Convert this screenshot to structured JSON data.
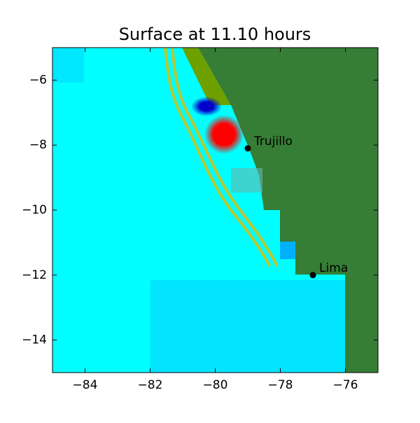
{
  "chart_data": {
    "type": "map",
    "title": "Surface at 11.10 hours",
    "xlim": [
      -85,
      -75
    ],
    "ylim": [
      -15,
      -5
    ],
    "xticks": [
      {
        "value": -84,
        "label": "−84"
      },
      {
        "value": -82,
        "label": "−82"
      },
      {
        "value": -80,
        "label": "−80"
      },
      {
        "value": -78,
        "label": "−78"
      },
      {
        "value": -76,
        "label": "−76"
      }
    ],
    "yticks": [
      {
        "value": -14,
        "label": "−14"
      },
      {
        "value": -12,
        "label": "−12"
      },
      {
        "value": -10,
        "label": "−10"
      },
      {
        "value": -8,
        "label": "−8"
      },
      {
        "value": -6,
        "label": "−6"
      }
    ],
    "places": {
      "names": [
        "Trujillo",
        "Lima"
      ],
      "x": [
        -79,
        -77
      ],
      "y": [
        -8.1,
        -12
      ],
      "color": "#000000"
    }
  }
}
